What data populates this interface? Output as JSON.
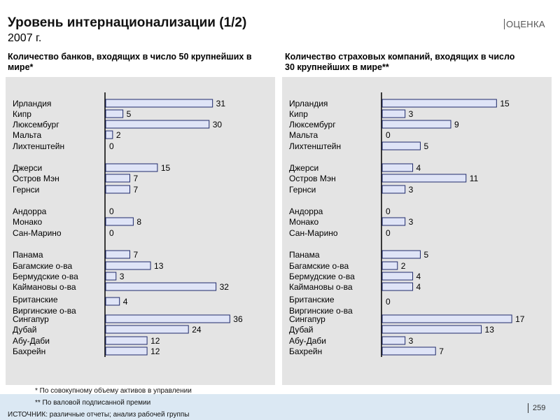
{
  "header": {
    "title": "Уровень интернационализации (1/2)",
    "year": "2007 г.",
    "tag": "ОЦЕНКА"
  },
  "chart_data": [
    {
      "type": "bar",
      "orientation": "horizontal",
      "title": "Количество банков, входящих в число 50 крупнейших в мире*",
      "categories": [
        "Ирландия",
        "Кипр",
        "Люксембург",
        "Мальта",
        "Лихтенштейн",
        "Джерси",
        "Остров Мэн",
        "Гернси",
        "Андорра",
        "Монако",
        "Сан-Марино",
        "Панама",
        "Багамские о-ва",
        "Бермудские о-ва",
        "Каймановы о-ва",
        "Британские Виргинские о-ва",
        "Сингапур",
        "Дубай",
        "Абу-Даби",
        "Бахрейн"
      ],
      "values": [
        31,
        5,
        30,
        2,
        0,
        15,
        7,
        7,
        0,
        8,
        0,
        7,
        13,
        3,
        32,
        4,
        36,
        24,
        12,
        12
      ],
      "xlim": [
        0,
        40
      ]
    },
    {
      "type": "bar",
      "orientation": "horizontal",
      "title": "Количество страховых компаний, входящих в число 30 крупнейших в мире**",
      "categories": [
        "Ирландия",
        "Кипр",
        "Люксембург",
        "Мальта",
        "Лихтенштейн",
        "Джерси",
        "Остров Мэн",
        "Гернси",
        "Андорра",
        "Монако",
        "Сан-Марино",
        "Панама",
        "Багамские о-ва",
        "Бермудские о-ва",
        "Каймановы о-ва",
        "Британские Виргинские о-ва",
        "Сингапур",
        "Дубай",
        "Абу-Даби",
        "Бахрейн"
      ],
      "values": [
        15,
        3,
        9,
        0,
        5,
        4,
        11,
        3,
        0,
        3,
        0,
        5,
        2,
        4,
        4,
        0,
        17,
        13,
        3,
        7
      ],
      "xlim": [
        0,
        18
      ]
    }
  ],
  "footer": {
    "note1": "* По совокупному объему активов в управлении",
    "note2": "** По валовой подписанной премии",
    "source": "ИСТОЧНИК: различные отчеты; анализ рабочей группы",
    "page": "259"
  }
}
